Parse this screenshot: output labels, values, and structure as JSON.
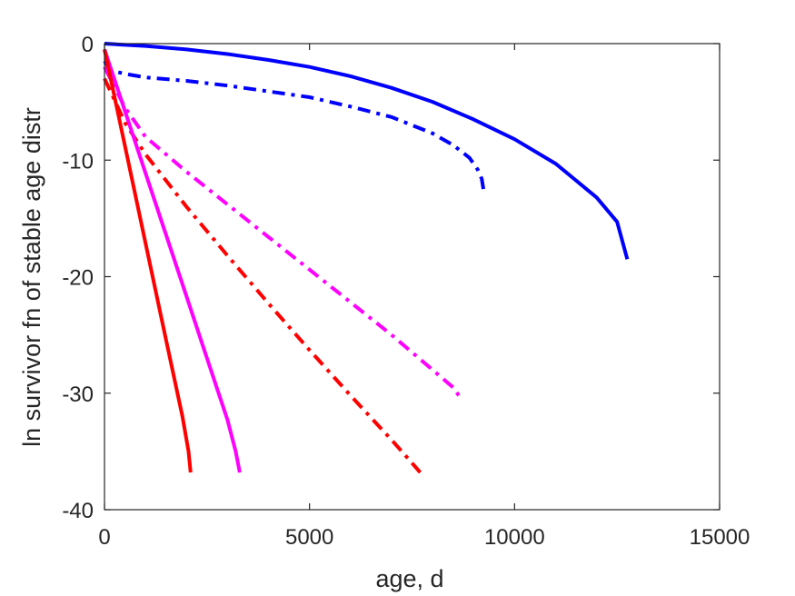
{
  "chart_data": {
    "type": "line",
    "xlabel": "age, d",
    "ylabel": "ln survivor fn of stable age distr",
    "xlim": [
      0,
      15000
    ],
    "ylim": [
      -40,
      0
    ],
    "xticks": [
      0,
      5000,
      10000,
      15000
    ],
    "yticks": [
      -40,
      -30,
      -20,
      -10,
      0
    ],
    "xtick_labels": [
      "0",
      "5000",
      "10000",
      "15000"
    ],
    "ytick_labels": [
      "-40",
      "-30",
      "-20",
      "-10",
      "0"
    ],
    "grid": false,
    "legend": "none",
    "series": [
      {
        "color": "#0000ff",
        "style": "solid",
        "x": [
          0,
          1000,
          2000,
          3000,
          4000,
          5000,
          6000,
          7000,
          8000,
          9000,
          10000,
          11000,
          12000,
          12500,
          12750
        ],
        "y": [
          0,
          -0.2,
          -0.5,
          -0.9,
          -1.4,
          -2.0,
          -2.8,
          -3.8,
          -5.0,
          -6.5,
          -8.2,
          -10.3,
          -13.2,
          -15.3,
          -18.5
        ]
      },
      {
        "color": "#0000ff",
        "style": "dashdot",
        "x": [
          0,
          150,
          500,
          1000,
          2000,
          3000,
          4000,
          5000,
          6000,
          7000,
          8000,
          8500,
          8900,
          9100,
          9200,
          9250
        ],
        "y": [
          -1.5,
          -2.3,
          -2.6,
          -2.9,
          -3.2,
          -3.6,
          -4.1,
          -4.6,
          -5.4,
          -6.3,
          -7.7,
          -8.7,
          -9.8,
          -10.8,
          -11.6,
          -12.7
        ]
      },
      {
        "color": "#ff00ff",
        "style": "dashdot",
        "x": [
          0,
          500,
          1000,
          2000,
          3000,
          4000,
          5000,
          6000,
          7000,
          8000,
          8500,
          8700
        ],
        "y": [
          -2.0,
          -5.5,
          -8.0,
          -11.0,
          -13.8,
          -16.6,
          -19.4,
          -22.2,
          -25.0,
          -28.0,
          -29.5,
          -30.5
        ]
      },
      {
        "color": "#ff0000",
        "style": "dashdot",
        "x": [
          0,
          200,
          500,
          1000,
          2000,
          3000,
          4000,
          5000,
          6000,
          7000,
          7500,
          7700
        ],
        "y": [
          -3.0,
          -4.5,
          -6.8,
          -9.5,
          -14.0,
          -18.2,
          -22.3,
          -26.3,
          -30.2,
          -34.0,
          -36.0,
          -36.8
        ]
      },
      {
        "color": "#ff00ff",
        "style": "solid",
        "x": [
          0,
          500,
          1000,
          1500,
          2000,
          2500,
          3000,
          3200,
          3300
        ],
        "y": [
          -0.5,
          -5.8,
          -11.1,
          -16.4,
          -21.7,
          -27.0,
          -32.3,
          -35.0,
          -36.8
        ]
      },
      {
        "color": "#ff0000",
        "style": "solid",
        "x": [
          0,
          500,
          1000,
          1500,
          1900,
          2050,
          2100
        ],
        "y": [
          -0.5,
          -8.8,
          -17.1,
          -25.4,
          -32.0,
          -35.0,
          -36.8
        ]
      }
    ]
  }
}
